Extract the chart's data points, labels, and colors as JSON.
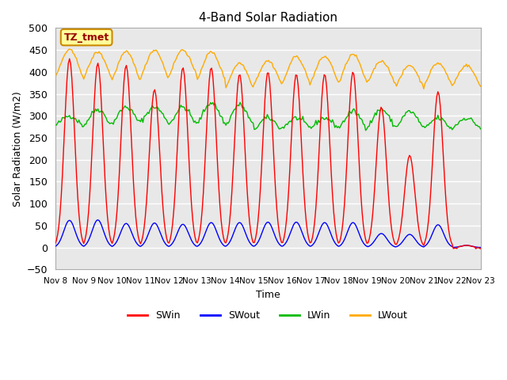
{
  "title": "4-Band Solar Radiation",
  "xlabel": "Time",
  "ylabel": "Solar Radiation (W/m2)",
  "ylim": [
    -50,
    500
  ],
  "yticks": [
    -50,
    0,
    50,
    100,
    150,
    200,
    250,
    300,
    350,
    400,
    450,
    500
  ],
  "plot_bg_color": "#e8e8e8",
  "fig_bg_color": "#ffffff",
  "grid_color": "#ffffff",
  "annotation_label": "TZ_tmet",
  "annotation_bg": "#ffff99",
  "annotation_border": "#cc8800",
  "annotation_text_color": "#990000",
  "colors": {
    "SWin": "#ff0000",
    "SWout": "#0000ff",
    "LWin": "#00bb00",
    "LWout": "#ffaa00"
  },
  "x_tick_labels": [
    "Nov 8",
    "Nov 9",
    "Nov 10",
    "Nov 11",
    "Nov 12",
    "Nov 13",
    "Nov 14",
    "Nov 15",
    "Nov 16",
    "Nov 17",
    "Nov 18",
    "Nov 19",
    "Nov 20",
    "Nov 21",
    "Nov 22",
    "Nov 23"
  ],
  "n_days": 15,
  "start_day": 8
}
